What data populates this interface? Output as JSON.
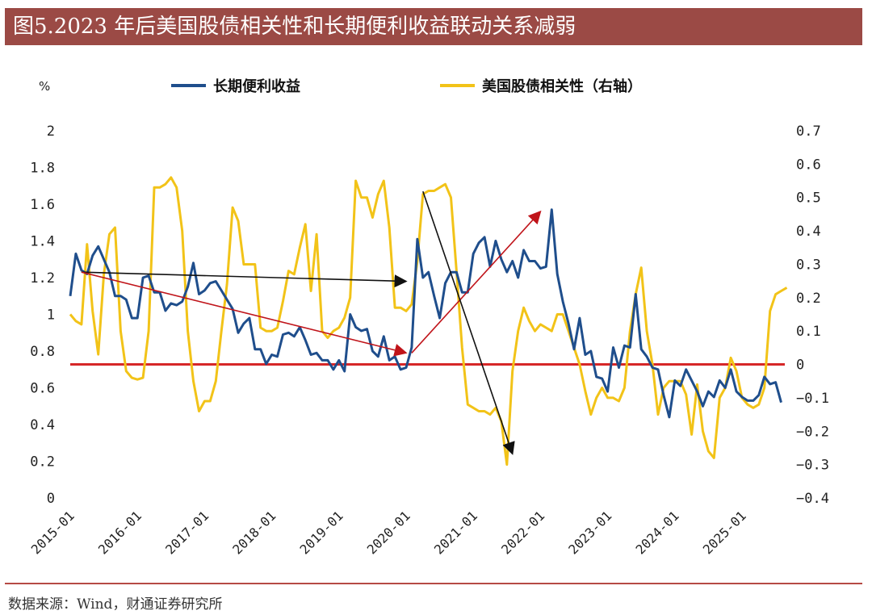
{
  "title": "图5.2023 年后美国股债相关性和长期便利收益联动关系减弱",
  "source": "数据来源：Wind，财通证券研究所",
  "chart_data": {
    "type": "line",
    "left_axis": {
      "unit": "%",
      "ylim": [
        0,
        2
      ],
      "ticks": [
        "0",
        "0.2",
        "0.4",
        "0.6",
        "0.8",
        "1",
        "1.2",
        "1.4",
        "1.6",
        "1.8",
        "2"
      ]
    },
    "right_axis": {
      "ylim": [
        -0.4,
        0.7
      ],
      "ticks": [
        "−0.4",
        "−0.3",
        "−0.2",
        "−0.1",
        "0",
        "0.1",
        "0.2",
        "0.3",
        "0.4",
        "0.5",
        "0.6",
        "0.7"
      ]
    },
    "x_ticks": [
      "2015-01",
      "2016-01",
      "2017-01",
      "2018-01",
      "2019-01",
      "2020-01",
      "2021-01",
      "2022-01",
      "2023-01",
      "2024-01",
      "2025-01"
    ],
    "reference_line": {
      "axis": "right",
      "value": 0,
      "color": "#d62728"
    },
    "series": [
      {
        "name": "长期便利收益",
        "axis": "left",
        "color": "#1f4e8c",
        "values": [
          1.1,
          1.33,
          1.24,
          1.22,
          1.32,
          1.37,
          1.3,
          1.23,
          1.1,
          1.1,
          1.08,
          0.98,
          0.98,
          1.2,
          1.21,
          1.12,
          1.12,
          1.02,
          1.06,
          1.05,
          1.07,
          1.15,
          1.28,
          1.11,
          1.13,
          1.17,
          1.18,
          1.13,
          1.08,
          1.03,
          0.9,
          0.95,
          0.98,
          0.81,
          0.81,
          0.73,
          0.78,
          0.77,
          0.89,
          0.9,
          0.88,
          0.93,
          0.86,
          0.78,
          0.79,
          0.75,
          0.75,
          0.7,
          0.75,
          0.69,
          1.0,
          0.93,
          0.91,
          0.92,
          0.8,
          0.77,
          0.88,
          0.75,
          0.77,
          0.7,
          0.71,
          0.82,
          1.41,
          1.2,
          1.23,
          1.1,
          0.98,
          1.17,
          1.23,
          1.23,
          1.12,
          1.12,
          1.33,
          1.39,
          1.42,
          1.26,
          1.4,
          1.3,
          1.23,
          1.29,
          1.2,
          1.35,
          1.29,
          1.29,
          1.25,
          1.26,
          1.57,
          1.22,
          1.07,
          0.95,
          0.81,
          0.98,
          0.78,
          0.8,
          0.66,
          0.65,
          0.58,
          0.82,
          0.71,
          0.83,
          0.82,
          1.11,
          0.81,
          0.77,
          0.71,
          0.7,
          0.56,
          0.44,
          0.64,
          0.61,
          0.7,
          0.64,
          0.58,
          0.5,
          0.58,
          0.55,
          0.64,
          0.6,
          0.7,
          0.58,
          0.55,
          0.53,
          0.53,
          0.56,
          0.66,
          0.62,
          0.63,
          0.52
        ]
      },
      {
        "name": "美国股债相关性（右轴）",
        "axis": "right",
        "color": "#f2c318",
        "values": [
          0.15,
          0.13,
          0.12,
          0.36,
          0.16,
          0.03,
          0.27,
          0.39,
          0.41,
          0.1,
          -0.02,
          -0.04,
          -0.045,
          -0.04,
          0.1,
          0.53,
          0.53,
          0.54,
          0.56,
          0.53,
          0.4,
          0.1,
          -0.05,
          -0.14,
          -0.11,
          -0.11,
          -0.05,
          0.1,
          0.24,
          0.47,
          0.43,
          0.3,
          0.3,
          0.3,
          0.11,
          0.1,
          0.1,
          0.11,
          0.19,
          0.28,
          0.27,
          0.35,
          0.42,
          0.22,
          0.39,
          0.1,
          0.08,
          0.1,
          0.11,
          0.14,
          0.2,
          0.55,
          0.5,
          0.5,
          0.44,
          0.51,
          0.55,
          0.41,
          0.17,
          0.17,
          0.16,
          0.18,
          0.31,
          0.51,
          0.52,
          0.52,
          0.53,
          0.54,
          0.5,
          0.28,
          0.05,
          -0.12,
          -0.13,
          -0.14,
          -0.14,
          -0.15,
          -0.13,
          -0.17,
          -0.3,
          -0.02,
          0.1,
          0.17,
          0.13,
          0.1,
          0.12,
          0.11,
          0.1,
          0.15,
          0.15,
          0.1,
          0.05,
          0.0,
          -0.08,
          -0.15,
          -0.1,
          -0.07,
          -0.1,
          -0.1,
          -0.11,
          -0.07,
          0.1,
          0.21,
          0.29,
          0.1,
          0.0,
          -0.15,
          -0.07,
          -0.05,
          -0.05,
          -0.05,
          -0.09,
          -0.21,
          -0.06,
          -0.2,
          -0.26,
          -0.28,
          -0.1,
          -0.07,
          0.02,
          -0.02,
          -0.1,
          -0.12,
          -0.13,
          -0.12,
          -0.07,
          0.16,
          0.21,
          0.22,
          0.23
        ]
      }
    ],
    "annotations": [
      {
        "type": "arrow",
        "color": "#111111",
        "from": [
          "2015-03",
          1.23
        ],
        "to": [
          "2020-01",
          1.18
        ],
        "axis": "left"
      },
      {
        "type": "arrow",
        "color": "#c0141a",
        "from": [
          "2015-03",
          1.23
        ],
        "to": [
          "2020-01",
          0.79
        ],
        "axis": "left"
      },
      {
        "type": "arrow",
        "color": "#c0141a",
        "from": [
          "2020-02",
          0.79
        ],
        "to": [
          "2022-01",
          1.56
        ],
        "axis": "left"
      },
      {
        "type": "arrow",
        "color": "#111111",
        "from": [
          "2020-04",
          1.67
        ],
        "to": [
          "2021-08",
          0.24
        ],
        "axis": "left"
      }
    ]
  }
}
